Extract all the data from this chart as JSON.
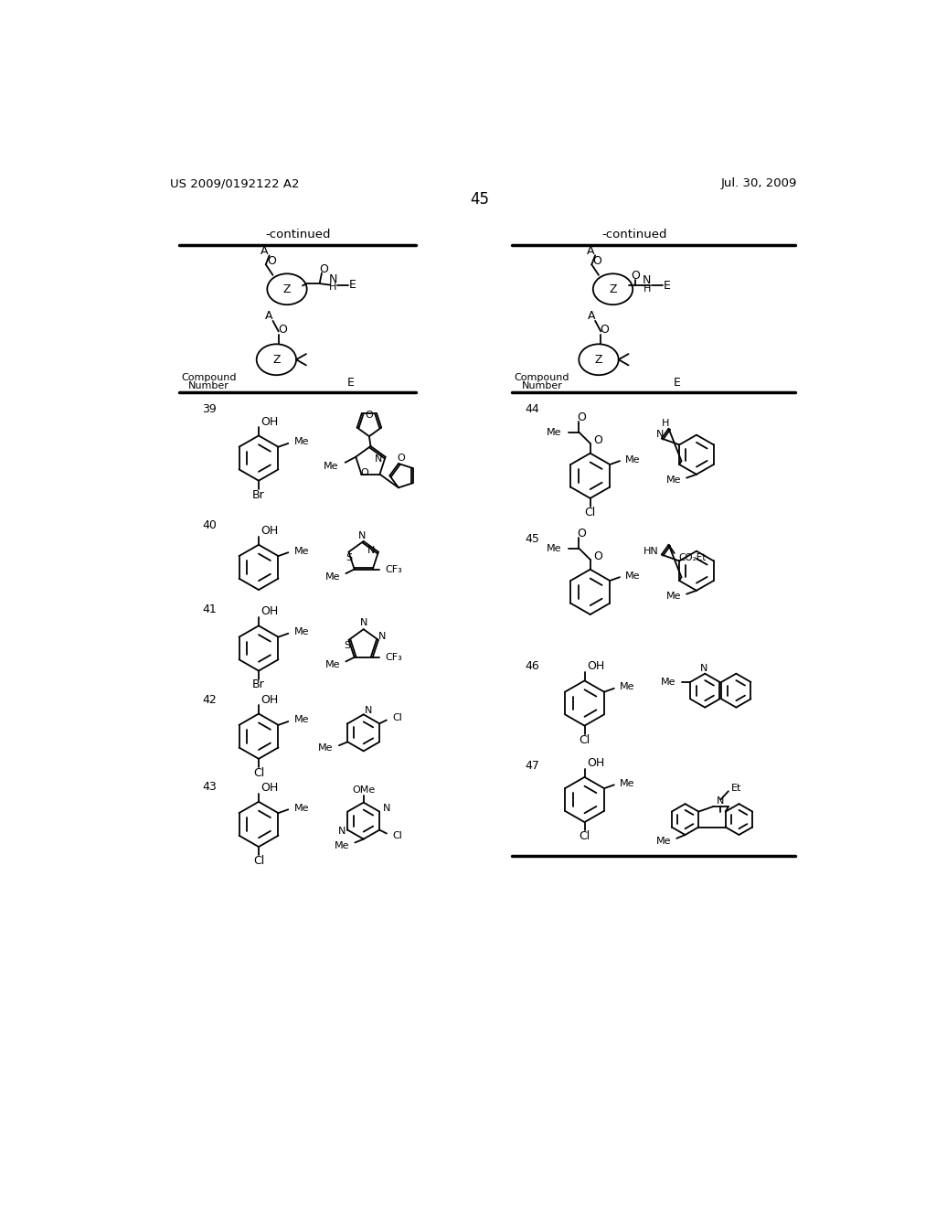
{
  "background_color": "#ffffff",
  "page_number": "45",
  "patent_number": "US 2009/0192122 A2",
  "patent_date": "Jul. 30, 2009",
  "title_left": "-continued",
  "title_right": "-continued"
}
